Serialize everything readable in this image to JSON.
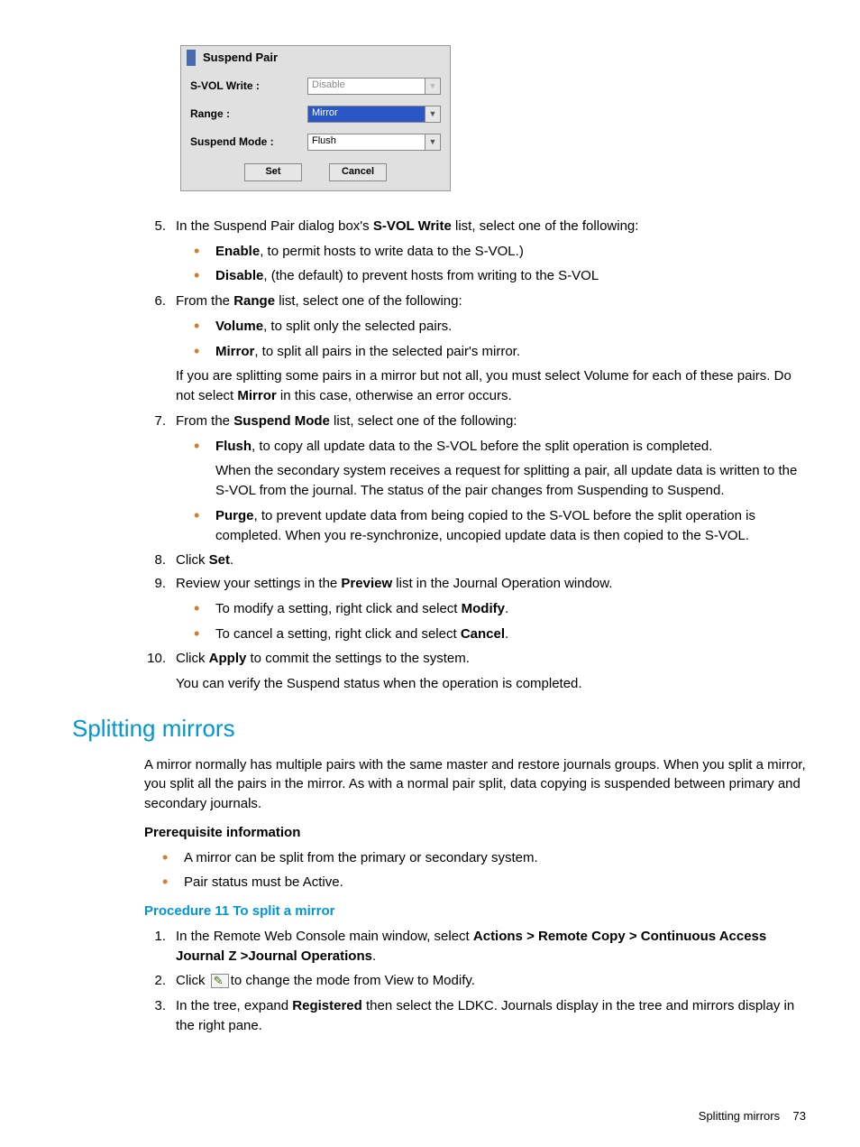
{
  "dialog": {
    "title": "Suspend Pair",
    "rows": {
      "svol": {
        "label": "S-VOL Write :",
        "value": "Disable"
      },
      "range": {
        "label": "Range :",
        "value": "Mirror"
      },
      "mode": {
        "label": "Suspend Mode :",
        "value": "Flush"
      }
    },
    "buttons": {
      "set": "Set",
      "cancel": "Cancel"
    }
  },
  "steps": {
    "s5": {
      "num": "5.",
      "pre": "In the Suspend Pair dialog box's ",
      "bold": "S-VOL Write",
      "post": " list, select one of the following:",
      "bullets": {
        "b1": {
          "bold": "Enable",
          "rest": ", to permit hosts to write data to the S-VOL.)"
        },
        "b2": {
          "bold": "Disable",
          "rest": ", (the default) to prevent hosts from writing to the S-VOL"
        }
      }
    },
    "s6": {
      "num": "6.",
      "pre": "From the ",
      "bold": "Range",
      "post": " list, select one of the following:",
      "bullets": {
        "b1": {
          "bold": "Volume",
          "rest": ", to split only the selected pairs."
        },
        "b2": {
          "bold": "Mirror",
          "rest": ", to split all pairs in the selected pair's mirror."
        }
      },
      "note_pre": "If you are splitting some pairs in a mirror but not all, you must select Volume for each of these pairs. Do not select ",
      "note_bold": "Mirror",
      "note_post": " in this case, otherwise an error occurs."
    },
    "s7": {
      "num": "7.",
      "pre": "From the ",
      "bold": "Suspend Mode",
      "post": " list, select one of the following:",
      "bullets": {
        "b1": {
          "bold": "Flush",
          "rest": ", to copy all update data to the S-VOL before the split operation is completed.",
          "extra": "When the secondary system receives a request for splitting a pair, all update data is written to the S-VOL from the journal. The status of the pair changes from Suspending to Suspend."
        },
        "b2": {
          "bold": "Purge",
          "rest": ", to prevent update data from being copied to the S-VOL before the split operation is completed. When you re-synchronize, uncopied update data is then copied to the S-VOL."
        }
      }
    },
    "s8": {
      "num": "8.",
      "pre": "Click ",
      "bold": "Set",
      "post": "."
    },
    "s9": {
      "num": "9.",
      "pre": "Review your settings in the ",
      "bold": "Preview",
      "post": " list in the Journal Operation window.",
      "bullets": {
        "b1": {
          "pre": "To modify a setting, right click and select ",
          "bold": "Modify",
          "post": "."
        },
        "b2": {
          "pre": "To cancel a setting, right click and select ",
          "bold": "Cancel",
          "post": "."
        }
      }
    },
    "s10": {
      "num": "10.",
      "pre": "Click ",
      "bold": "Apply",
      "post": " to commit the settings to the system."
    }
  },
  "afterList": "You can verify the Suspend status when the operation is completed.",
  "section": {
    "title": "Splitting mirrors",
    "intro": "A mirror normally has multiple pairs with the same master and restore journals groups. When you split a mirror, you split all the pairs in the mirror. As with a normal pair split, data copying is suspended between primary and secondary journals.",
    "prereq_head": "Prerequisite information",
    "prereq": {
      "p1": "A mirror can be split from the primary or secondary system.",
      "p2": "Pair status must be Active."
    },
    "proc_head": "Procedure 11 To split a mirror",
    "proc": {
      "p1": {
        "num": "1.",
        "pre": "In the Remote Web Console main window, select ",
        "bold": "Actions > Remote Copy > Continuous Access Journal Z >Journal Operations",
        "post": "."
      },
      "p2": {
        "num": "2.",
        "pre": "Click ",
        "post": "to change the mode from View to Modify."
      },
      "p3": {
        "num": "3.",
        "pre": "In the tree, expand ",
        "bold": "Registered",
        "post": " then select the LDKC. Journals display in the tree and mirrors display in the right pane."
      }
    }
  },
  "footer": {
    "text": "Splitting mirrors",
    "page": "73"
  },
  "colors": {
    "accent_blue": "#0096d6",
    "bullet_orange": "#d87a2b",
    "select_highlight": "#2a56c6",
    "dialog_bg": "#e0e0e0"
  }
}
